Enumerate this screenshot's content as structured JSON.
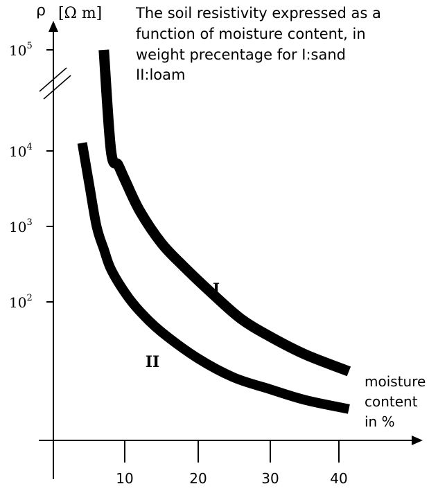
{
  "chart_data": {
    "type": "line",
    "title_lines": [
      "The soil resistivity expressed as a",
      "function of moisture content, in",
      "weight precentage for I:sand",
      "II:loam"
    ],
    "ylabel": "ρ",
    "yunit": "[Ω m]",
    "xlabel_lines": [
      "moisture",
      "content",
      "in %"
    ],
    "y_scale": "log",
    "y_axis_break": true,
    "x_ticks": [
      10,
      20,
      30,
      40
    ],
    "y_ticks": [
      {
        "base": "10",
        "exp": "2",
        "value": 100
      },
      {
        "base": "10",
        "exp": "3",
        "value": 1000
      },
      {
        "base": "10",
        "exp": "4",
        "value": 10000
      },
      {
        "base": "10",
        "exp": "5",
        "value": 100000
      }
    ],
    "grid": false,
    "series": [
      {
        "name": "I",
        "x": [
          7,
          8,
          9,
          10,
          12,
          15,
          18,
          22,
          26,
          30,
          35,
          41
        ],
        "y": [
          100000,
          10000,
          6500,
          4000,
          1600,
          600,
          300,
          130,
          60,
          35,
          20,
          12
        ]
      },
      {
        "name": "II",
        "x": [
          4,
          5,
          6,
          7,
          8,
          10,
          12,
          15,
          20,
          25,
          30,
          35,
          41
        ],
        "y": [
          12000,
          3500,
          1000,
          500,
          270,
          130,
          75,
          40,
          18,
          10,
          7,
          5,
          3.8
        ]
      }
    ]
  }
}
